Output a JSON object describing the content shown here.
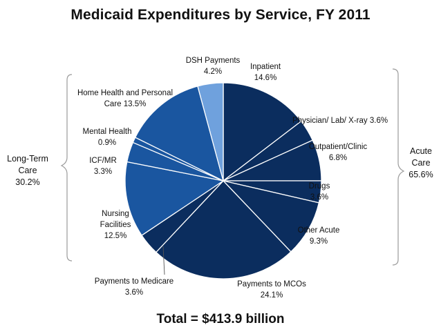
{
  "chart_data": {
    "type": "pie",
    "title": "Medicaid Expenditures by Service, FY 2011",
    "total_label": "Total = $413.9 billion",
    "slices": [
      {
        "name": "Inpatient",
        "value": 14.6,
        "value_label": "14.6%",
        "color": "#0b2d5e"
      },
      {
        "name": "Physician/ Lab/ X-ray",
        "value": 3.6,
        "value_label": "3.6%",
        "color": "#0b2d5e"
      },
      {
        "name": "Outpatient/Clinic",
        "value": 6.8,
        "value_label": "6.8%",
        "color": "#0b2d5e"
      },
      {
        "name": "Drugs",
        "value": 3.6,
        "value_label": "3.6%",
        "color": "#0b2d5e"
      },
      {
        "name": "Other Acute",
        "value": 9.3,
        "value_label": "9.3%",
        "color": "#0b2d5e"
      },
      {
        "name": "Payments to MCOs",
        "value": 24.1,
        "value_label": "24.1%",
        "color": "#0b2d5e"
      },
      {
        "name": "Payments to Medicare",
        "value": 3.6,
        "value_label": "3.6%",
        "color": "#0b2d5e"
      },
      {
        "name": "Nursing Facilities",
        "value": 12.5,
        "value_label": "12.5%",
        "color": "#1a56a0"
      },
      {
        "name": "ICF/MR",
        "value": 3.3,
        "value_label": "3.3%",
        "color": "#1a56a0"
      },
      {
        "name": "Mental Health",
        "value": 0.9,
        "value_label": "0.9%",
        "color": "#1a56a0"
      },
      {
        "name": "Home Health and Personal Care",
        "value": 13.5,
        "value_label": "13.5%",
        "color": "#1a56a0"
      },
      {
        "name": "DSH Payments",
        "value": 4.2,
        "value_label": "4.2%",
        "color": "#6fa1dd"
      }
    ],
    "groups": [
      {
        "name": "Long-Term Care",
        "line1": "Long-Term",
        "line2": "Care",
        "value_label": "30.2%"
      },
      {
        "name": "Acute Care",
        "line1": "Acute",
        "line2": "Care",
        "value_label": "65.6%"
      }
    ]
  },
  "labels": {
    "inpatient": {
      "name": "Inpatient",
      "value": "14.6%"
    },
    "physician": {
      "text": "Physician/ Lab/ X-ray  3.6%"
    },
    "outpatient": {
      "name": "Outpatient/Clinic",
      "value": "6.8%"
    },
    "drugs": {
      "name": "Drugs",
      "value": "3.6%"
    },
    "other_acute": {
      "name": "Other Acute",
      "value": "9.3%"
    },
    "mco": {
      "name": "Payments to MCOs",
      "value": "24.1%"
    },
    "medicare": {
      "name": "Payments to Medicare",
      "value": "3.6%"
    },
    "nursing": {
      "line1": "Nursing",
      "line2": "Facilities",
      "value": "12.5%"
    },
    "icf": {
      "name": "ICF/MR",
      "value": "3.3%"
    },
    "mental": {
      "name": "Mental Health",
      "value": "0.9%"
    },
    "homehealth": {
      "line1": "Home Health and Personal",
      "line2": "Care 13.5%"
    },
    "dsh": {
      "name": "DSH Payments",
      "value": "4.2%"
    }
  }
}
